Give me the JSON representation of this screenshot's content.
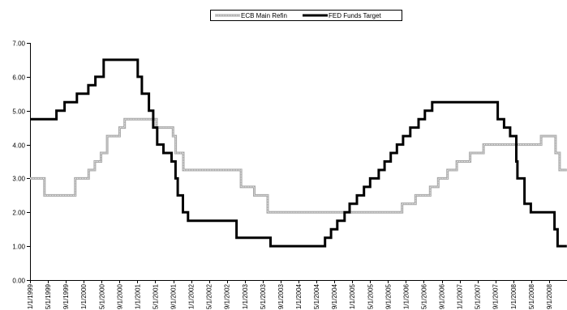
{
  "chart_data": {
    "type": "line",
    "title": "",
    "xlabel": "",
    "ylabel": "",
    "ylim": [
      0,
      7
    ],
    "y_ticks": [
      "0.00",
      "1.00",
      "2.00",
      "3.00",
      "4.00",
      "5.00",
      "6.00",
      "7.00"
    ],
    "x_ticks": [
      "1/1/1999",
      "5/1/1999",
      "9/1/1999",
      "1/1/2000",
      "5/1/2000",
      "9/1/2000",
      "1/1/2001",
      "5/1/2001",
      "9/1/2001",
      "1/1/2002",
      "5/1/2002",
      "9/1/2002",
      "1/1/2003",
      "5/1/2003",
      "9/1/2003",
      "1/1/2004",
      "5/1/2004",
      "9/1/2004",
      "1/1/2005",
      "5/1/2005",
      "9/1/2005",
      "1/1/2006",
      "5/1/2006",
      "9/1/2006",
      "1/1/2007",
      "5/1/2007",
      "9/1/2007",
      "1/1/2008",
      "5/1/2008",
      "9/1/2008"
    ],
    "grid": false,
    "legend_position": "top-center",
    "x_range": [
      "1999-01-01",
      "2008-12-31"
    ],
    "series": [
      {
        "name": "ECB Main Refin",
        "color": "#a6a6a6",
        "style": "step",
        "points": [
          [
            "1999-01-01",
            3.0
          ],
          [
            "1999-04-09",
            2.5
          ],
          [
            "1999-11-05",
            3.0
          ],
          [
            "2000-02-04",
            3.25
          ],
          [
            "2000-03-17",
            3.5
          ],
          [
            "2000-04-28",
            3.75
          ],
          [
            "2000-06-09",
            4.25
          ],
          [
            "2000-09-01",
            4.5
          ],
          [
            "2000-10-06",
            4.75
          ],
          [
            "2001-05-11",
            4.5
          ],
          [
            "2001-08-31",
            4.25
          ],
          [
            "2001-09-18",
            3.75
          ],
          [
            "2001-11-09",
            3.25
          ],
          [
            "2002-12-06",
            2.75
          ],
          [
            "2003-03-07",
            2.5
          ],
          [
            "2003-06-06",
            2.0
          ],
          [
            "2005-12-06",
            2.25
          ],
          [
            "2006-03-08",
            2.5
          ],
          [
            "2006-06-15",
            2.75
          ],
          [
            "2006-08-09",
            3.0
          ],
          [
            "2006-10-11",
            3.25
          ],
          [
            "2006-12-13",
            3.5
          ],
          [
            "2007-03-14",
            3.75
          ],
          [
            "2007-06-13",
            4.0
          ],
          [
            "2008-07-09",
            4.25
          ],
          [
            "2008-10-15",
            3.75
          ],
          [
            "2008-11-12",
            3.25
          ],
          [
            "2008-12-31",
            3.25
          ]
        ]
      },
      {
        "name": "FED Funds Target",
        "color": "#000000",
        "style": "step",
        "points": [
          [
            "1999-01-01",
            4.75
          ],
          [
            "1999-06-30",
            5.0
          ],
          [
            "1999-08-24",
            5.25
          ],
          [
            "1999-11-16",
            5.5
          ],
          [
            "2000-02-02",
            5.75
          ],
          [
            "2000-03-21",
            6.0
          ],
          [
            "2000-05-16",
            6.5
          ],
          [
            "2001-01-03",
            6.0
          ],
          [
            "2001-01-31",
            5.5
          ],
          [
            "2001-03-20",
            5.0
          ],
          [
            "2001-04-18",
            4.5
          ],
          [
            "2001-05-15",
            4.0
          ],
          [
            "2001-06-27",
            3.75
          ],
          [
            "2001-08-21",
            3.5
          ],
          [
            "2001-09-17",
            3.0
          ],
          [
            "2001-10-02",
            2.5
          ],
          [
            "2001-11-06",
            2.0
          ],
          [
            "2001-12-11",
            1.75
          ],
          [
            "2002-11-06",
            1.25
          ],
          [
            "2003-06-25",
            1.0
          ],
          [
            "2004-06-30",
            1.25
          ],
          [
            "2004-08-10",
            1.5
          ],
          [
            "2004-09-21",
            1.75
          ],
          [
            "2004-11-10",
            2.0
          ],
          [
            "2004-12-14",
            2.25
          ],
          [
            "2005-02-02",
            2.5
          ],
          [
            "2005-03-22",
            2.75
          ],
          [
            "2005-05-03",
            3.0
          ],
          [
            "2005-06-30",
            3.25
          ],
          [
            "2005-08-09",
            3.5
          ],
          [
            "2005-09-20",
            3.75
          ],
          [
            "2005-11-01",
            4.0
          ],
          [
            "2005-12-13",
            4.25
          ],
          [
            "2006-01-31",
            4.5
          ],
          [
            "2006-03-28",
            4.75
          ],
          [
            "2006-05-10",
            5.0
          ],
          [
            "2006-06-29",
            5.25
          ],
          [
            "2007-09-18",
            4.75
          ],
          [
            "2007-10-31",
            4.5
          ],
          [
            "2007-12-11",
            4.25
          ],
          [
            "2008-01-22",
            3.5
          ],
          [
            "2008-01-30",
            3.0
          ],
          [
            "2008-03-18",
            2.25
          ],
          [
            "2008-04-30",
            2.0
          ],
          [
            "2008-10-08",
            1.5
          ],
          [
            "2008-10-29",
            1.0
          ],
          [
            "2008-12-31",
            1.0
          ]
        ]
      }
    ]
  }
}
